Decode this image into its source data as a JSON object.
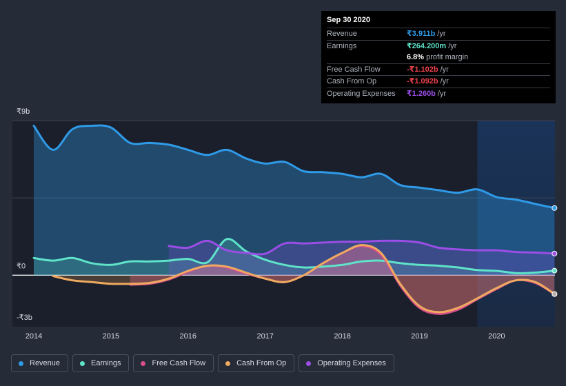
{
  "chart_data": {
    "type": "area",
    "title": "",
    "x_range": [
      2014,
      2020.75
    ],
    "ylim": [
      -3,
      9
    ],
    "y_tick_labels": [
      {
        "value": 9,
        "label": "₹9b"
      },
      {
        "value": 0,
        "label": "₹0"
      },
      {
        "value": -3,
        "label": "-₹3b"
      }
    ],
    "x_tick_labels": [
      "2014",
      "2015",
      "2016",
      "2017",
      "2018",
      "2019",
      "2020"
    ],
    "forecast_start": 2019.75,
    "series": [
      {
        "name": "Revenue",
        "key": "revenue",
        "color": "#2f9be8",
        "points": [
          [
            2014.0,
            8.7
          ],
          [
            2014.25,
            7.3
          ],
          [
            2014.5,
            8.5
          ],
          [
            2014.75,
            8.7
          ],
          [
            2015.0,
            8.6
          ],
          [
            2015.25,
            7.7
          ],
          [
            2015.5,
            7.7
          ],
          [
            2015.75,
            7.6
          ],
          [
            2016.0,
            7.3
          ],
          [
            2016.25,
            7.0
          ],
          [
            2016.5,
            7.3
          ],
          [
            2016.75,
            6.8
          ],
          [
            2017.0,
            6.5
          ],
          [
            2017.25,
            6.6
          ],
          [
            2017.5,
            6.05
          ],
          [
            2017.75,
            6.0
          ],
          [
            2018.0,
            5.9
          ],
          [
            2018.25,
            5.7
          ],
          [
            2018.5,
            5.9
          ],
          [
            2018.75,
            5.25
          ],
          [
            2019.0,
            5.1
          ],
          [
            2019.25,
            4.95
          ],
          [
            2019.5,
            4.8
          ],
          [
            2019.75,
            5.0
          ],
          [
            2020.0,
            4.55
          ],
          [
            2020.25,
            4.4
          ],
          [
            2020.5,
            4.15
          ],
          [
            2020.75,
            3.911
          ]
        ]
      },
      {
        "name": "Earnings",
        "key": "earnings",
        "color": "#5fe3c9",
        "points": [
          [
            2014.0,
            1.0
          ],
          [
            2014.25,
            0.85
          ],
          [
            2014.5,
            1.0
          ],
          [
            2014.75,
            0.7
          ],
          [
            2015.0,
            0.6
          ],
          [
            2015.25,
            0.8
          ],
          [
            2015.5,
            0.8
          ],
          [
            2015.75,
            0.85
          ],
          [
            2016.0,
            0.95
          ],
          [
            2016.25,
            0.75
          ],
          [
            2016.5,
            2.1
          ],
          [
            2016.75,
            1.4
          ],
          [
            2017.0,
            0.9
          ],
          [
            2017.25,
            0.6
          ],
          [
            2017.5,
            0.45
          ],
          [
            2017.75,
            0.5
          ],
          [
            2018.0,
            0.6
          ],
          [
            2018.25,
            0.8
          ],
          [
            2018.5,
            0.85
          ],
          [
            2018.75,
            0.7
          ],
          [
            2019.0,
            0.6
          ],
          [
            2019.25,
            0.55
          ],
          [
            2019.5,
            0.45
          ],
          [
            2019.75,
            0.3
          ],
          [
            2020.0,
            0.25
          ],
          [
            2020.25,
            0.12
          ],
          [
            2020.5,
            0.15
          ],
          [
            2020.75,
            0.2642
          ]
        ]
      },
      {
        "name": "Free Cash Flow",
        "key": "fcf",
        "color": "#d94f8a",
        "points": [
          [
            2015.25,
            -0.55
          ],
          [
            2015.5,
            -0.5
          ],
          [
            2015.75,
            -0.25
          ],
          [
            2016.0,
            0.2
          ],
          [
            2016.25,
            0.55
          ],
          [
            2016.5,
            0.45
          ],
          [
            2016.75,
            0.1
          ],
          [
            2017.0,
            -0.2
          ],
          [
            2017.25,
            -0.4
          ],
          [
            2017.5,
            0.0
          ],
          [
            2017.75,
            0.7
          ],
          [
            2018.0,
            1.3
          ],
          [
            2018.25,
            1.7
          ],
          [
            2018.5,
            1.2
          ],
          [
            2018.75,
            -0.6
          ],
          [
            2019.0,
            -1.9
          ],
          [
            2019.25,
            -2.25
          ],
          [
            2019.5,
            -2.0
          ],
          [
            2019.75,
            -1.4
          ],
          [
            2020.0,
            -0.8
          ],
          [
            2020.25,
            -0.3
          ],
          [
            2020.5,
            -0.45
          ],
          [
            2020.75,
            -1.102
          ]
        ]
      },
      {
        "name": "Cash From Op",
        "key": "cfo",
        "color": "#efaa60",
        "points": [
          [
            2014.25,
            -0.05
          ],
          [
            2014.5,
            -0.3
          ],
          [
            2014.75,
            -0.4
          ],
          [
            2015.0,
            -0.5
          ],
          [
            2015.25,
            -0.5
          ],
          [
            2015.5,
            -0.45
          ],
          [
            2015.75,
            -0.2
          ],
          [
            2016.0,
            0.25
          ],
          [
            2016.25,
            0.55
          ],
          [
            2016.5,
            0.5
          ],
          [
            2016.75,
            0.15
          ],
          [
            2017.0,
            -0.2
          ],
          [
            2017.25,
            -0.4
          ],
          [
            2017.5,
            0.0
          ],
          [
            2017.75,
            0.7
          ],
          [
            2018.0,
            1.3
          ],
          [
            2018.25,
            1.75
          ],
          [
            2018.5,
            1.3
          ],
          [
            2018.75,
            -0.5
          ],
          [
            2019.0,
            -1.8
          ],
          [
            2019.25,
            -2.15
          ],
          [
            2019.5,
            -1.9
          ],
          [
            2019.75,
            -1.35
          ],
          [
            2020.0,
            -0.75
          ],
          [
            2020.25,
            -0.3
          ],
          [
            2020.5,
            -0.4
          ],
          [
            2020.75,
            -1.092
          ]
        ]
      },
      {
        "name": "Operating Expenses",
        "key": "opex",
        "color": "#9b4ee6",
        "points": [
          [
            2015.75,
            1.7
          ],
          [
            2016.0,
            1.6
          ],
          [
            2016.25,
            2.0
          ],
          [
            2016.5,
            1.45
          ],
          [
            2016.75,
            1.3
          ],
          [
            2017.0,
            1.25
          ],
          [
            2017.25,
            1.85
          ],
          [
            2017.5,
            1.85
          ],
          [
            2017.75,
            1.9
          ],
          [
            2018.0,
            1.95
          ],
          [
            2018.25,
            1.95
          ],
          [
            2018.5,
            2.0
          ],
          [
            2018.75,
            2.0
          ],
          [
            2019.0,
            1.9
          ],
          [
            2019.25,
            1.6
          ],
          [
            2019.5,
            1.5
          ],
          [
            2019.75,
            1.45
          ],
          [
            2020.0,
            1.45
          ],
          [
            2020.25,
            1.35
          ],
          [
            2020.5,
            1.32
          ],
          [
            2020.75,
            1.26
          ]
        ]
      }
    ]
  },
  "tooltip": {
    "date": "Sep 30 2020",
    "rows": [
      {
        "label": "Revenue",
        "value": "₹3.911b",
        "unit": "/yr",
        "color": "#2f9be8"
      },
      {
        "label": "Earnings",
        "value": "₹264.200m",
        "unit": "/yr",
        "color": "#5fe3c9"
      },
      {
        "label": "",
        "value": "6.8%",
        "unit": "profit margin",
        "color": "#ffffff"
      },
      {
        "label": "Free Cash Flow",
        "value": "-₹1.102b",
        "unit": "/yr",
        "color": "#f0434e"
      },
      {
        "label": "Cash From Op",
        "value": "-₹1.092b",
        "unit": "/yr",
        "color": "#f0434e"
      },
      {
        "label": "Operating Expenses",
        "value": "₹1.260b",
        "unit": "/yr",
        "color": "#9b4ee6"
      }
    ]
  },
  "legend": [
    {
      "label": "Revenue",
      "color": "#2f9be8"
    },
    {
      "label": "Earnings",
      "color": "#5fe3c9"
    },
    {
      "label": "Free Cash Flow",
      "color": "#d94f8a"
    },
    {
      "label": "Cash From Op",
      "color": "#efaa60"
    },
    {
      "label": "Operating Expenses",
      "color": "#9b4ee6"
    }
  ]
}
